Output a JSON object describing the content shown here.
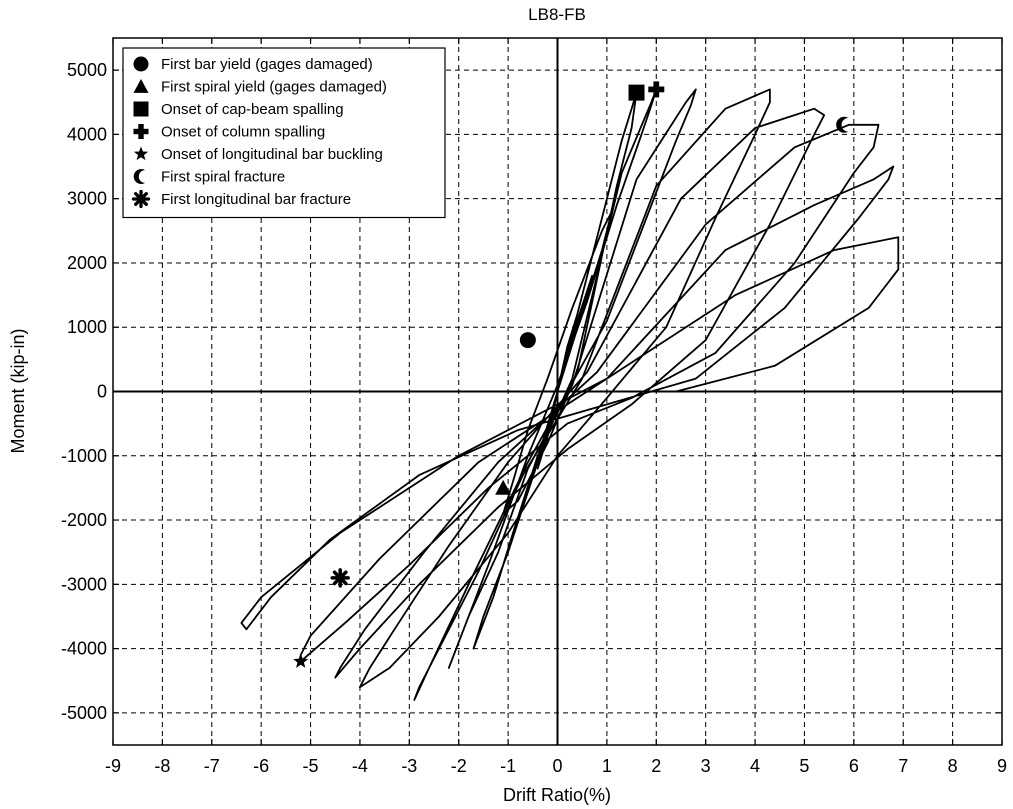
{
  "chart_data": {
    "type": "line",
    "title": "LB8-FB",
    "xlabel": "Drift Ratio(%)",
    "ylabel": "Moment (kip-in)",
    "xlim": [
      -9,
      9
    ],
    "ylim": [
      -5500,
      5500
    ],
    "xticks": [
      -9,
      -8,
      -7,
      -6,
      -5,
      -4,
      -3,
      -2,
      -1,
      0,
      1,
      2,
      3,
      4,
      5,
      6,
      7,
      8,
      9
    ],
    "yticks": [
      -5000,
      -4000,
      -3000,
      -2000,
      -1000,
      0,
      1000,
      2000,
      3000,
      4000,
      5000
    ],
    "grid": true,
    "legend_position": "top-left",
    "series": [
      {
        "id": "hysteresis",
        "color": "#000000",
        "x": [
          0,
          0.3,
          0.4,
          0.2,
          0,
          -0.3,
          -0.4,
          -0.2,
          0,
          0.5,
          0.7,
          0.4,
          0,
          -0.5,
          -0.7,
          -0.4,
          0,
          0.9,
          1.1,
          0.9,
          0.3,
          -0.2,
          -0.6,
          -0.9,
          -1.1,
          -0.8,
          -0.2,
          0.4,
          1.2,
          1.5,
          1.6,
          1.5,
          1.3,
          0.9,
          0.4,
          0,
          -0.4,
          -1.0,
          -1.5,
          -1.7,
          -1.6,
          -1.3,
          -0.9,
          -0.4,
          0.3,
          1.3,
          1.9,
          2.0,
          1.9,
          1.7,
          1.2,
          0.6,
          0,
          -0.6,
          -1.4,
          -2.0,
          -2.2,
          -2.1,
          -1.8,
          -1.2,
          -0.6,
          0.3,
          1.6,
          2.6,
          2.8,
          2.7,
          2.4,
          1.8,
          1.0,
          0.2,
          -0.6,
          -1.8,
          -2.6,
          -2.9,
          -2.8,
          -2.4,
          -1.6,
          -0.7,
          0.5,
          2.0,
          3.4,
          4.3,
          4.3,
          4.0,
          3.2,
          2.2,
          1.0,
          0,
          -1.0,
          -2.4,
          -3.4,
          -4.0,
          -3.8,
          -3.3,
          -2.2,
          -1.0,
          0.6,
          2.5,
          4.0,
          5.2,
          5.4,
          5.2,
          4.3,
          3.0,
          1.5,
          0.2,
          -1.2,
          -2.8,
          -4.0,
          -4.5,
          -4.4,
          -3.9,
          -2.7,
          -1.2,
          0.8,
          3.0,
          4.8,
          5.9,
          6.5,
          6.4,
          6.0,
          4.8,
          3.2,
          1.5,
          0.2,
          -1.4,
          -3.0,
          -4.3,
          -5.2,
          -5.2,
          -5.0,
          -3.6,
          -1.6,
          1.0,
          3.4,
          5.2,
          6.4,
          6.8,
          6.7,
          6.1,
          4.6,
          2.8,
          1.0,
          -0.8,
          -2.8,
          -4.6,
          -5.8,
          -6.3,
          -6.4,
          -6.0,
          -4.4,
          -2.0,
          1.0,
          3.6,
          5.6,
          6.9,
          6.9,
          6.3,
          4.4,
          2.4,
          0.5
        ],
        "y": [
          0,
          900,
          1200,
          700,
          0,
          -900,
          -1200,
          -700,
          0,
          1300,
          1800,
          1100,
          0,
          -1300,
          -1800,
          -1100,
          0,
          2200,
          2800,
          2500,
          1300,
          200,
          -600,
          -1400,
          -1900,
          -1700,
          -800,
          300,
          3200,
          4100,
          4650,
          4400,
          3900,
          2700,
          1200,
          0,
          -1100,
          -2500,
          -3500,
          -4000,
          -3800,
          -3200,
          -2200,
          -1000,
          200,
          3400,
          4500,
          4700,
          4450,
          4000,
          2900,
          1400,
          100,
          -1000,
          -2700,
          -3900,
          -4300,
          -4100,
          -3500,
          -2500,
          -1200,
          100,
          3300,
          4500,
          4700,
          4450,
          3900,
          2700,
          1100,
          0,
          -1100,
          -3000,
          -4300,
          -4800,
          -4600,
          -4000,
          -2800,
          -1300,
          200,
          3200,
          4400,
          4700,
          4500,
          4000,
          2700,
          1000,
          -100,
          -1000,
          -2200,
          -3500,
          -4300,
          -4600,
          -4300,
          -3700,
          -2400,
          -1100,
          300,
          3000,
          4100,
          4400,
          4300,
          4000,
          2600,
          800,
          -200,
          -900,
          -1800,
          -3000,
          -4000,
          -4450,
          -4300,
          -3700,
          -2500,
          -1100,
          300,
          2600,
          3800,
          4150,
          4150,
          3800,
          3400,
          2000,
          600,
          -100,
          -500,
          -1500,
          -2700,
          -3600,
          -4200,
          -4100,
          -3800,
          -2600,
          -1100,
          200,
          2200,
          2900,
          3300,
          3500,
          3300,
          2700,
          1300,
          200,
          -200,
          -600,
          -1300,
          -2300,
          -3200,
          -3700,
          -3600,
          -3200,
          -2200,
          -1000,
          200,
          1500,
          2200,
          2400,
          1900,
          1300,
          400,
          0,
          0
        ]
      }
    ],
    "legend": [
      {
        "label": "First bar yield (gages damaged)",
        "symbol": "circle"
      },
      {
        "label": "First spiral yield (gages damaged)",
        "symbol": "triangle"
      },
      {
        "label": "Onset of cap-beam spalling",
        "symbol": "square"
      },
      {
        "label": "Onset of column spalling",
        "symbol": "cross"
      },
      {
        "label": "Onset of longitudinal bar buckling",
        "symbol": "star"
      },
      {
        "label": "First spiral fracture",
        "symbol": "crescent"
      },
      {
        "label": "First longitudinal bar fracture",
        "symbol": "asterisk"
      }
    ],
    "markers": [
      {
        "symbol": "square",
        "x": 1.6,
        "y": 4650
      },
      {
        "symbol": "cross",
        "x": 2.0,
        "y": 4700
      },
      {
        "symbol": "crescent",
        "x": 5.8,
        "y": 4150
      },
      {
        "symbol": "star",
        "x": -5.2,
        "y": -4200
      },
      {
        "symbol": "asterisk",
        "x": -4.4,
        "y": -2900
      },
      {
        "symbol": "circle",
        "x": -0.6,
        "y": 800
      },
      {
        "symbol": "triangle",
        "x": -1.1,
        "y": -1500
      }
    ]
  }
}
